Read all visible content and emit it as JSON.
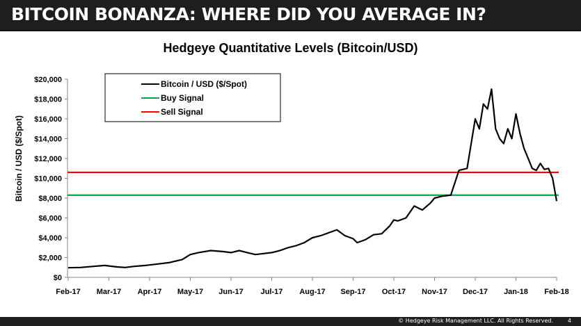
{
  "header": {
    "title": "BITCOIN BONANZA: WHERE DID YOU AVERAGE IN?"
  },
  "footer": {
    "copyright": "© Hedgeye Risk Management LLC. All Rights Reserved.",
    "page_number": "4"
  },
  "colors": {
    "header_bg": "#1e1e1e",
    "bitcoin_line": "#000000",
    "buy_signal": "#00a651",
    "sell_signal": "#ff0000",
    "axis": "#868686"
  },
  "chart_data": {
    "type": "line",
    "title": "Hedgeye Quantitative Levels (Bitcoin/USD)",
    "xlabel": "",
    "ylabel": "Bitcoin / USD ($/Spot)",
    "ylim": [
      0,
      20000
    ],
    "grid": false,
    "legend_position": "top-left (inside plot)",
    "x_ticks": [
      "Feb-17",
      "Mar-17",
      "Apr-17",
      "May-17",
      "Jun-17",
      "Jul-17",
      "Aug-17",
      "Sep-17",
      "Oct-17",
      "Nov-17",
      "Dec-17",
      "Jan-18",
      "Feb-18"
    ],
    "y_ticks": [
      "$0",
      "$2,000",
      "$4,000",
      "$6,000",
      "$8,000",
      "$10,000",
      "$12,000",
      "$14,000",
      "$16,000",
      "$18,000",
      "$20,000"
    ],
    "series": [
      {
        "name": "Bitcoin / USD ($/Spot)",
        "color": "#000000",
        "x_month_offset": [
          0,
          0.3,
          0.6,
          0.9,
          1.0,
          1.2,
          1.4,
          1.6,
          1.9,
          2.0,
          2.2,
          2.5,
          2.8,
          3.0,
          3.2,
          3.5,
          3.8,
          4.0,
          4.2,
          4.4,
          4.6,
          4.8,
          5.0,
          5.2,
          5.4,
          5.6,
          5.8,
          6.0,
          6.2,
          6.4,
          6.6,
          6.8,
          7.0,
          7.1,
          7.3,
          7.5,
          7.7,
          7.9,
          8.0,
          8.1,
          8.3,
          8.5,
          8.7,
          8.9,
          9.0,
          9.2,
          9.4,
          9.6,
          9.8,
          10.0,
          10.1,
          10.2,
          10.3,
          10.4,
          10.5,
          10.6,
          10.7,
          10.8,
          10.9,
          11.0,
          11.1,
          11.2,
          11.3,
          11.4,
          11.5,
          11.6,
          11.7,
          11.8,
          11.9,
          12.0
        ],
        "values": [
          970,
          1000,
          1100,
          1200,
          1150,
          1050,
          1000,
          1100,
          1200,
          1250,
          1350,
          1500,
          1800,
          2300,
          2500,
          2700,
          2600,
          2500,
          2700,
          2500,
          2300,
          2400,
          2500,
          2700,
          3000,
          3200,
          3500,
          4000,
          4200,
          4500,
          4800,
          4200,
          3900,
          3500,
          3800,
          4300,
          4400,
          5200,
          5800,
          5700,
          6000,
          7200,
          6800,
          7500,
          8000,
          8200,
          8300,
          10800,
          11000,
          16000,
          15000,
          17500,
          17000,
          19000,
          15000,
          14000,
          13500,
          15000,
          14000,
          16500,
          14500,
          13000,
          12000,
          11000,
          10800,
          11500,
          10900,
          11000,
          10000,
          7700
        ]
      },
      {
        "name": "Buy Signal",
        "color": "#00a651",
        "constant_value": 8300
      },
      {
        "name": "Sell Signal",
        "color": "#ff0000",
        "constant_value": 10600
      }
    ],
    "annotations": []
  }
}
